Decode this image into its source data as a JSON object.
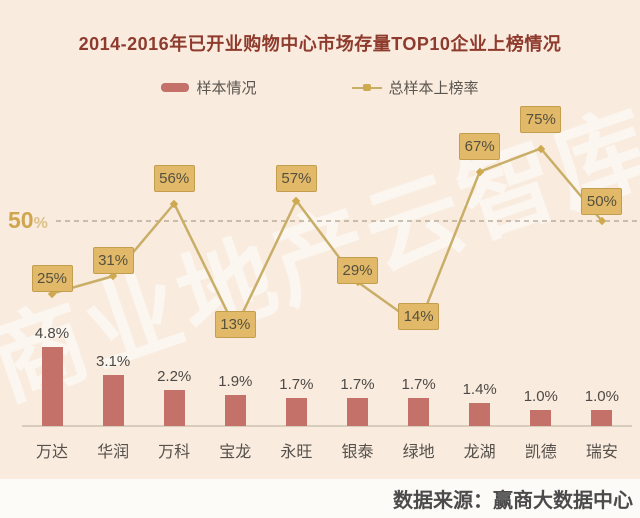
{
  "title": "2014-2016年已开业购物中心市场存量TOP10企业上榜情况",
  "legend": {
    "bar_label": "样本情况",
    "line_label": "总样本上榜率"
  },
  "watermark": "商业地产云智库",
  "reference_line": {
    "label": "50",
    "unit": "%",
    "value": 50
  },
  "source": "数据来源：赢商大数据中心",
  "colors": {
    "background": "#f9ecdf",
    "title": "#8e3a2d",
    "bar": "#c4716a",
    "line": "#c9ae67",
    "point_box_fill": "#e2b968",
    "point_box_border": "#c49e4f",
    "reference_label": "#cfa64e",
    "source_text": "#4b4b4b"
  },
  "chart_data": {
    "type": "bar+line",
    "categories": [
      "万达",
      "华润",
      "万科",
      "宝龙",
      "永旺",
      "银泰",
      "绿地",
      "龙湖",
      "凯德",
      "瑞安"
    ],
    "series": [
      {
        "name": "样本情况",
        "type": "bar",
        "unit": "%",
        "values": [
          4.8,
          3.1,
          2.2,
          1.9,
          1.7,
          1.7,
          1.7,
          1.4,
          1.0,
          1.0
        ],
        "labels": [
          "4.8%",
          "3.1%",
          "2.2%",
          "1.9%",
          "1.7%",
          "1.7%",
          "1.7%",
          "1.4%",
          "1.0%",
          "1.0%"
        ]
      },
      {
        "name": "总样本上榜率",
        "type": "line",
        "unit": "%",
        "values": [
          25,
          31,
          56,
          13,
          57,
          29,
          14,
          67,
          75,
          50
        ],
        "labels": [
          "25%",
          "31%",
          "56%",
          "13%",
          "57%",
          "29%",
          "14%",
          "67%",
          "75%",
          "50%"
        ]
      }
    ],
    "reference_line_value": 50,
    "grid": false,
    "legend_position": "top",
    "layout": {
      "label_offsets": [
        -15,
        -16,
        -25,
        -4,
        -22,
        -11,
        -9,
        -25,
        -29,
        -20
      ]
    }
  }
}
